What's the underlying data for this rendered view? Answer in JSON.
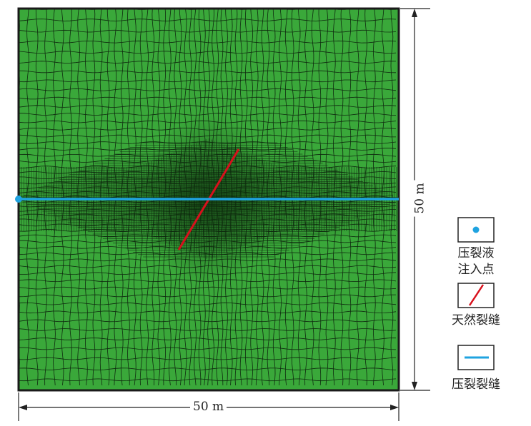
{
  "figure": {
    "domain_size_bottom": "50 m",
    "domain_size_right": "50 m",
    "mesh_color": "#3aa83a",
    "mesh_line_color": "#0f2a0f",
    "border_color": "#1a1a1a"
  },
  "legend": {
    "injection_point_label_line1": "压裂液",
    "injection_point_label_line2": "注入点",
    "natural_fracture_label": "天然裂缝",
    "hydraulic_fracture_label": "压裂裂缝",
    "injection_point_color": "#1fa3e0",
    "natural_fracture_color": "#d8101c",
    "hydraulic_fracture_color": "#1fa3e0",
    "icons": [
      "dot-icon",
      "red-line-icon",
      "blue-line-icon"
    ]
  }
}
